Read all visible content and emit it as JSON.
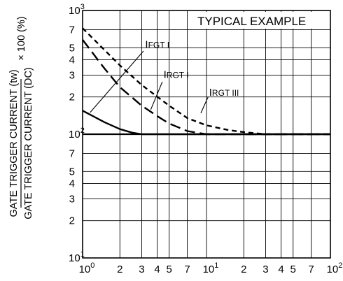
{
  "chart_data": {
    "type": "line",
    "annotation_title": "TYPICAL EXAMPLE",
    "ylabel": {
      "numerator": "GATE TRIGGER CURRENT (tw)",
      "denominator": "GATE TRIGGER CURRENT (DC)",
      "multiplier": "× 100 (%)"
    },
    "xscale": "log",
    "yscale": "log",
    "xlim": [
      1,
      100
    ],
    "ylim": [
      10,
      1000
    ],
    "grid": true,
    "legend_placement": "annotations on curves",
    "x_ticks": [
      {
        "value": 1,
        "base": "10",
        "exp": "0"
      },
      {
        "value": 2,
        "base": "2",
        "exp": ""
      },
      {
        "value": 3,
        "base": "3",
        "exp": ""
      },
      {
        "value": 4,
        "base": "4",
        "exp": ""
      },
      {
        "value": 5,
        "base": "5",
        "exp": ""
      },
      {
        "value": 7,
        "base": "7",
        "exp": ""
      },
      {
        "value": 10,
        "base": "10",
        "exp": "1"
      },
      {
        "value": 20,
        "base": "2",
        "exp": ""
      },
      {
        "value": 30,
        "base": "3",
        "exp": ""
      },
      {
        "value": 40,
        "base": "4",
        "exp": ""
      },
      {
        "value": 50,
        "base": "5",
        "exp": ""
      },
      {
        "value": 70,
        "base": "7",
        "exp": ""
      },
      {
        "value": 100,
        "base": "10",
        "exp": "2"
      }
    ],
    "y_ticks": [
      {
        "value": 10,
        "base": "10",
        "exp": "1"
      },
      {
        "value": 20,
        "base": "2",
        "exp": ""
      },
      {
        "value": 30,
        "base": "3",
        "exp": ""
      },
      {
        "value": 40,
        "base": "4",
        "exp": ""
      },
      {
        "value": 50,
        "base": "5",
        "exp": ""
      },
      {
        "value": 70,
        "base": "7",
        "exp": ""
      },
      {
        "value": 100,
        "base": "10",
        "exp": "2"
      },
      {
        "value": 200,
        "base": "2",
        "exp": ""
      },
      {
        "value": 300,
        "base": "3",
        "exp": ""
      },
      {
        "value": 400,
        "base": "4",
        "exp": ""
      },
      {
        "value": 500,
        "base": "5",
        "exp": ""
      },
      {
        "value": 700,
        "base": "7",
        "exp": ""
      },
      {
        "value": 1000,
        "base": "10",
        "exp": "3"
      }
    ],
    "series": [
      {
        "name": "IFGT I",
        "label_main": "I",
        "label_sub": "FGT I",
        "style": "solid",
        "color": "#000000",
        "points": [
          [
            1,
            155
          ],
          [
            1.5,
            125
          ],
          [
            2,
            110
          ],
          [
            2.5,
            103
          ],
          [
            3,
            100
          ],
          [
            100,
            100
          ]
        ],
        "label_pos": [
          3.2,
          500
        ],
        "leader": [
          [
            3.1,
            470
          ],
          [
            1.15,
            150
          ]
        ]
      },
      {
        "name": "IRGT I",
        "label_main": "I",
        "label_sub": "RGT I",
        "style": "long-dash",
        "color": "#000000",
        "points": [
          [
            1,
            580
          ],
          [
            1.5,
            340
          ],
          [
            2,
            240
          ],
          [
            3,
            170
          ],
          [
            4,
            140
          ],
          [
            5,
            122
          ],
          [
            7,
            106
          ],
          [
            10,
            100
          ],
          [
            100,
            100
          ]
        ],
        "label_pos": [
          4.5,
          285
        ],
        "leader": [
          [
            4.4,
            265
          ],
          [
            3.55,
            158
          ]
        ]
      },
      {
        "name": "IRGT III",
        "label_main": "I",
        "label_sub": "RGT III",
        "style": "short-dash",
        "color": "#000000",
        "points": [
          [
            1,
            720
          ],
          [
            2,
            360
          ],
          [
            3,
            250
          ],
          [
            5,
            170
          ],
          [
            7,
            135
          ],
          [
            10,
            118
          ],
          [
            15,
            108
          ],
          [
            20,
            104
          ],
          [
            30,
            100
          ],
          [
            100,
            100
          ]
        ],
        "label_pos": [
          10.5,
          205
        ],
        "leader": [
          [
            10.3,
            200
          ],
          [
            9.0,
            148
          ]
        ]
      }
    ]
  }
}
